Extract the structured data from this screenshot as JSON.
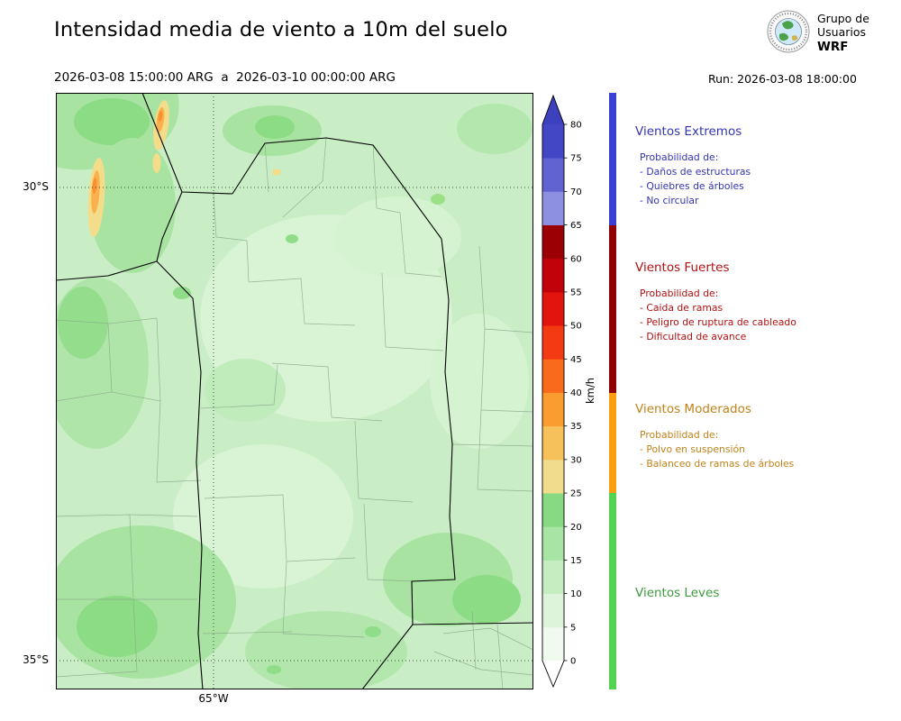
{
  "header": {
    "title": "Intensidad media de viento a 10m del suelo",
    "date_range": "2026-03-08 15:00:00 ARG  a  2026-03-10 00:00:00 ARG",
    "run_label": "Run: 2026-03-08 18:00:00",
    "logo": {
      "org_line1": "Grupo de",
      "org_line2": "Usuarios",
      "org_line3": "WRF"
    }
  },
  "map": {
    "lat_ticks": [
      "30°S",
      "35°S"
    ],
    "lon_ticks": [
      "65°W"
    ]
  },
  "colorbar": {
    "unit": "km/h",
    "tick_min": 0,
    "tick_max": 80,
    "tick_step": 5,
    "colors_low_to_high": [
      "#f1faef",
      "#def4da",
      "#c5edc1",
      "#a8e4a3",
      "#88da82",
      "#f0dc8c",
      "#f6c05a",
      "#fa9c30",
      "#fa6a1c",
      "#f43a12",
      "#e2140e",
      "#c2020a",
      "#9b0004",
      "#8d8fe0",
      "#6163d2",
      "#4347c5"
    ],
    "arrow_color": "#3d41be",
    "under_color": "#ffffff"
  },
  "legend": {
    "categories": [
      {
        "title": "Vientos Extremos",
        "text_color": "#3434b2",
        "strip_color": "#3b3fd0",
        "range_kmh": {
          "from": 65,
          "to": null
        },
        "prob_label": "Probabilidad de:",
        "items": [
          "- Daños de estructuras",
          "- Quiebres de árboles",
          "- No circular"
        ]
      },
      {
        "title": "Vientos Fuertes",
        "text_color": "#b01010",
        "strip_color": "#8f0000",
        "range_kmh": {
          "from": 40,
          "to": 65
        },
        "prob_label": "Probabilidad de:",
        "items": [
          "- Caida de ramas",
          "- Peligro de ruptura de cableado",
          "- Dificultad de avance"
        ]
      },
      {
        "title": "Vientos Moderados",
        "text_color": "#c18219",
        "strip_color": "#fb9d13",
        "range_kmh": {
          "from": 25,
          "to": 40
        },
        "prob_label": "Probabilidad de:",
        "items": [
          "- Polvo en suspensión",
          "- Balanceo de ramas de árboles"
        ]
      },
      {
        "title": "Vientos Leves",
        "text_color": "#3c9a3c",
        "strip_color": "#52d452",
        "range_kmh": {
          "from": null,
          "to": 25
        },
        "prob_label": null,
        "items": []
      }
    ]
  }
}
